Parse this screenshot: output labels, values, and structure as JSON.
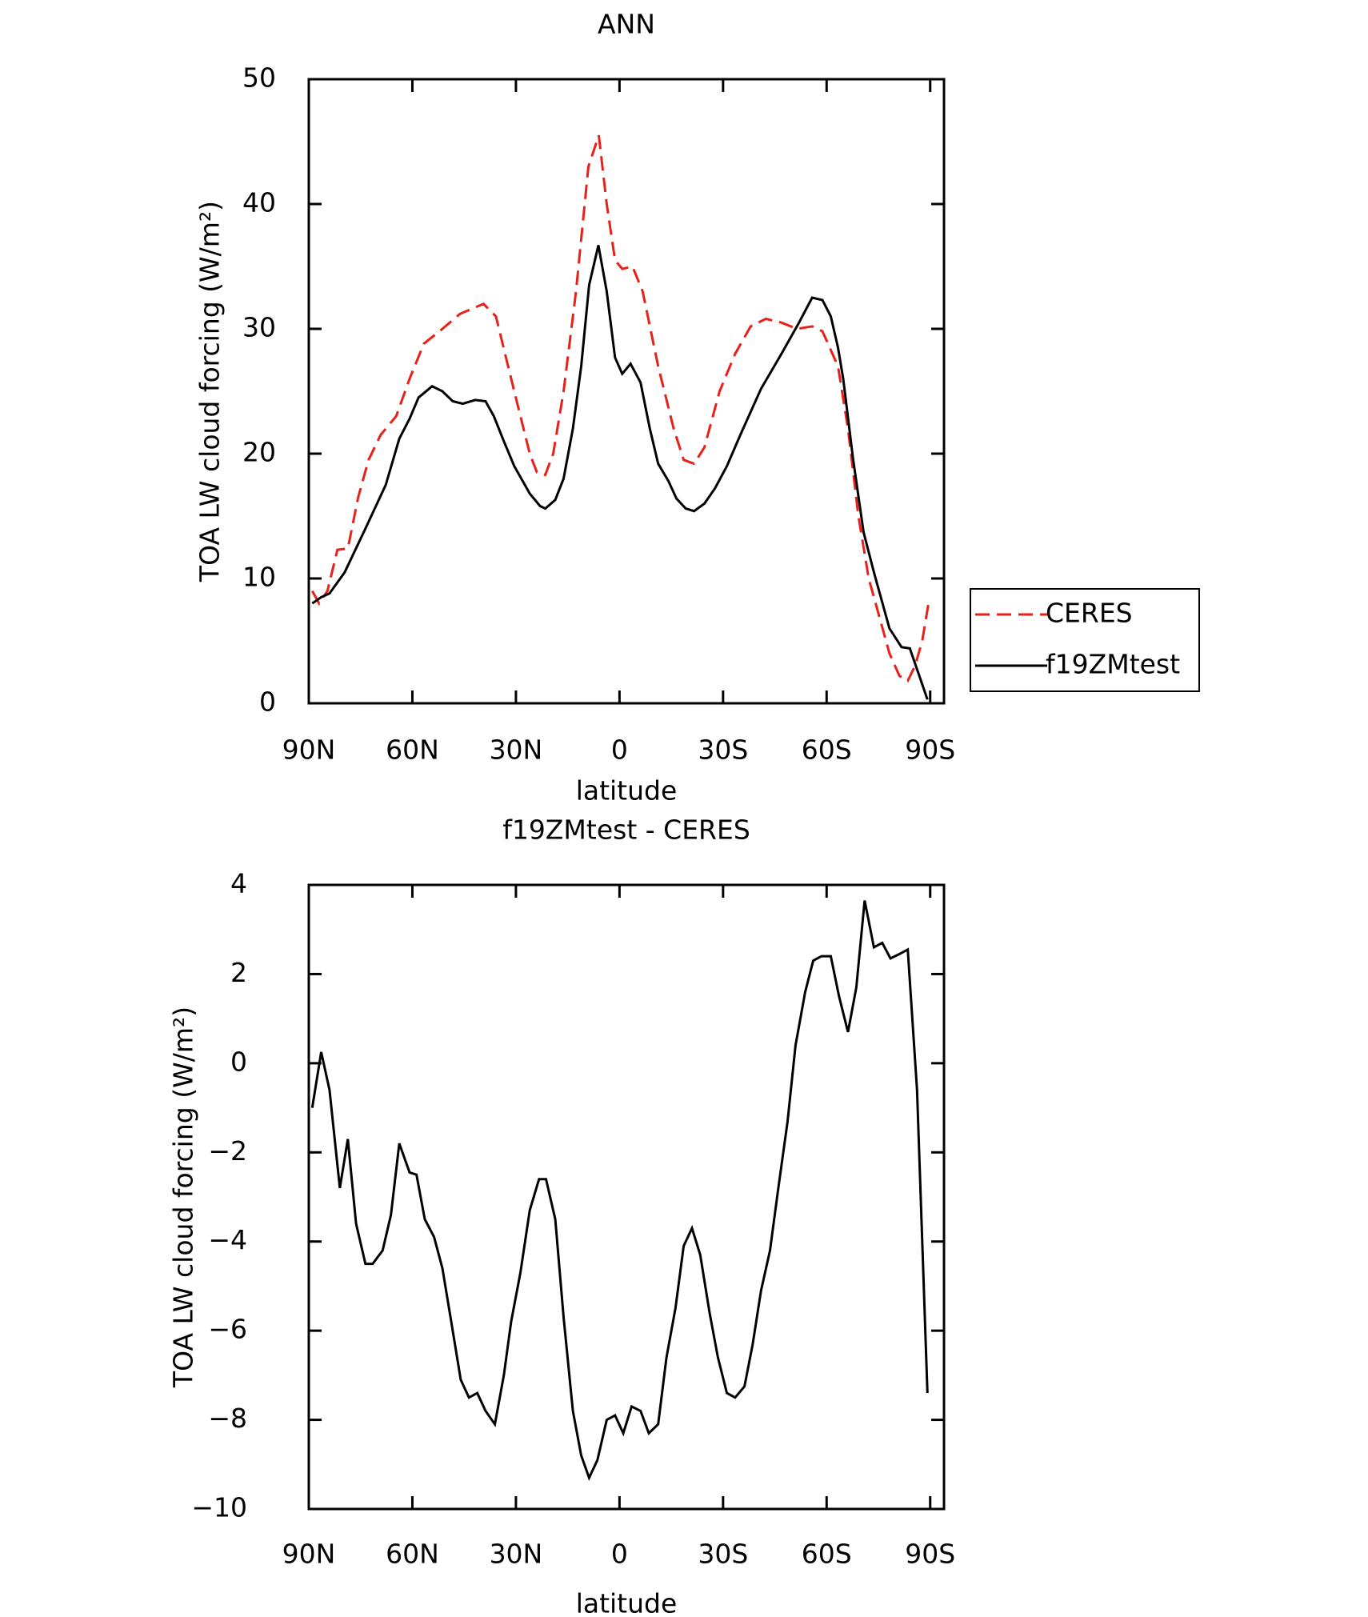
{
  "chart_data": [
    {
      "type": "line",
      "title": "ANN",
      "xlabel": "latitude",
      "ylabel": "TOA LW cloud forcing (W/m²)",
      "xlim": [
        90,
        -94
      ],
      "ylim": [
        0,
        50
      ],
      "xticks": [
        {
          "value": 90,
          "label": "90N"
        },
        {
          "value": 60,
          "label": "60N"
        },
        {
          "value": 30,
          "label": "30N"
        },
        0,
        {
          "value": -30,
          "label": "30S"
        },
        {
          "value": -60,
          "label": "60S"
        },
        {
          "value": -90,
          "label": "90S"
        }
      ],
      "yticks": [
        0,
        10,
        20,
        30,
        40,
        50
      ],
      "legend": "right",
      "series": [
        {
          "name": "CERES",
          "color": "#e8201a",
          "linestyle": "dashed",
          "x": [
            89,
            87,
            84.6,
            81.7,
            78.7,
            75.7,
            72.7,
            69.2,
            64.7,
            60.8,
            56.7,
            51.3,
            46.2,
            39.4,
            35.8,
            30.5,
            26,
            23.9,
            21.5,
            19.2,
            16.2,
            12.6,
            9,
            6,
            3.7,
            1.3,
            -0.8,
            -3.75,
            -6.7,
            -11.2,
            -15.7,
            -18.6,
            -21.6,
            -24.6,
            -29,
            -33.5,
            -38,
            -42.4,
            -46.9,
            -51.4,
            -55.8,
            -58.8,
            -63.3,
            -66.2,
            -69.2,
            -72.2,
            -75.2,
            -78.2,
            -81.1,
            -83.5,
            -85.6,
            -87.7,
            -89.5
          ],
          "values": [
            9,
            8,
            9,
            12.3,
            12.4,
            16.5,
            19.5,
            21.5,
            23,
            26,
            28.8,
            30,
            31.2,
            32,
            31,
            25,
            20,
            18.5,
            18.3,
            20,
            25,
            33,
            43,
            45.5,
            40,
            35.5,
            34.8,
            35,
            33,
            27,
            22,
            19.5,
            19.2,
            20.5,
            25,
            28,
            30.2,
            30.8,
            30.5,
            30,
            30.2,
            29.8,
            27,
            22,
            15,
            10,
            7,
            4,
            2.2,
            1.8,
            3,
            5,
            8
          ]
        },
        {
          "name": "f19ZMtest",
          "color": "#000000",
          "linestyle": "solid",
          "x": [
            89,
            86.4,
            84,
            79.6,
            73.6,
            67.7,
            63.8,
            60.8,
            58.2,
            54.3,
            51.3,
            48.3,
            45.4,
            41.8,
            38.8,
            36.4,
            33.5,
            30.5,
            26,
            23,
            21.5,
            18.6,
            16.2,
            13.5,
            11.1,
            8.8,
            6.1,
            3.7,
            1.3,
            -0.8,
            -3.2,
            -6.1,
            -8.8,
            -11.2,
            -14.2,
            -16.5,
            -19.2,
            -21.6,
            -24.6,
            -27.6,
            -31.1,
            -35,
            -41,
            -46.9,
            -52,
            -55.8,
            -58.8,
            -61.2,
            -63.3,
            -64.8,
            -67.7,
            -70.7,
            -73.7,
            -78.2,
            -81.7,
            -84.1,
            -87.1,
            -89.2
          ],
          "values": [
            8,
            8.5,
            8.8,
            10.5,
            14,
            17.5,
            21.2,
            22.8,
            24.5,
            25.4,
            25,
            24.2,
            24,
            24.3,
            24.2,
            23,
            21,
            19,
            16.8,
            15.8,
            15.6,
            16.3,
            18,
            22,
            27,
            33.5,
            36.7,
            33,
            27.7,
            26.4,
            27.2,
            25.7,
            22,
            19.2,
            17.8,
            16.4,
            15.6,
            15.4,
            16,
            17.2,
            19,
            21.5,
            25.2,
            28,
            30.5,
            32.5,
            32.3,
            31,
            28.5,
            26,
            19.5,
            13.7,
            10.5,
            6,
            4.5,
            4.4,
            2,
            0.3
          ]
        }
      ]
    },
    {
      "type": "line",
      "title": "f19ZMtest - CERES",
      "xlabel": "latitude",
      "ylabel": "TOA LW cloud forcing (W/m²)",
      "xlim": [
        90,
        -94
      ],
      "ylim": [
        -10,
        4
      ],
      "xticks": [
        {
          "value": 90,
          "label": "90N"
        },
        {
          "value": 60,
          "label": "60N"
        },
        {
          "value": 30,
          "label": "30N"
        },
        0,
        {
          "value": -30,
          "label": "30S"
        },
        {
          "value": -60,
          "label": "60S"
        },
        {
          "value": -90,
          "label": "90S"
        }
      ],
      "yticks": [
        {
          "value": -10,
          "label": "−10"
        },
        {
          "value": -8,
          "label": "−8"
        },
        {
          "value": -6,
          "label": "−6"
        },
        {
          "value": -4,
          "label": "−4"
        },
        {
          "value": -2,
          "label": "−2"
        },
        0,
        2,
        4
      ],
      "series": [
        {
          "color": "#000000",
          "linestyle": "solid",
          "x": [
            89,
            86.4,
            84,
            81,
            78.7,
            76.3,
            73.6,
            71.5,
            68.6,
            66.2,
            63.8,
            60.8,
            58.8,
            56.4,
            53.7,
            51.3,
            48.3,
            46,
            43.6,
            41.2,
            38.8,
            36.1,
            33.5,
            31.4,
            28.7,
            26,
            23.3,
            21.3,
            18.6,
            16.2,
            13.5,
            11.1,
            8.8,
            6.4,
            3.7,
            1.3,
            -1.1,
            -3.5,
            -6.1,
            -8.5,
            -11.2,
            -13.6,
            -16.2,
            -18.6,
            -21,
            -23.4,
            -26.1,
            -28.5,
            -31.1,
            -33.5,
            -36.2,
            -38.6,
            -41,
            -43.6,
            -46,
            -48.7,
            -51,
            -53.8,
            -56.1,
            -58.5,
            -61.2,
            -63.6,
            -66.2,
            -68.6,
            -71,
            -73.7,
            -76.1,
            -78.5,
            -81.1,
            -83.5,
            -86.2,
            -89.2
          ],
          "values": [
            -1,
            0.25,
            -0.6,
            -2.8,
            -1.7,
            -3.6,
            -4.5,
            -4.5,
            -4.2,
            -3.4,
            -1.8,
            -2.45,
            -2.5,
            -3.5,
            -3.9,
            -4.6,
            -6,
            -7.1,
            -7.5,
            -7.4,
            -7.8,
            -8.1,
            -7,
            -5.8,
            -4.7,
            -3.3,
            -2.6,
            -2.6,
            -3.5,
            -5.7,
            -7.8,
            -8.8,
            -9.3,
            -8.9,
            -8,
            -7.9,
            -8.3,
            -7.7,
            -7.8,
            -8.3,
            -8.1,
            -6.6,
            -5.5,
            -4.1,
            -3.7,
            -4.3,
            -5.6,
            -6.6,
            -7.4,
            -7.5,
            -7.25,
            -6.3,
            -5.1,
            -4.2,
            -2.8,
            -1.3,
            0.4,
            1.6,
            2.3,
            2.4,
            2.4,
            1.5,
            0.7,
            1.7,
            3.65,
            2.6,
            2.7,
            2.35,
            2.45,
            2.55,
            -0.6,
            -7.4
          ]
        }
      ]
    }
  ]
}
